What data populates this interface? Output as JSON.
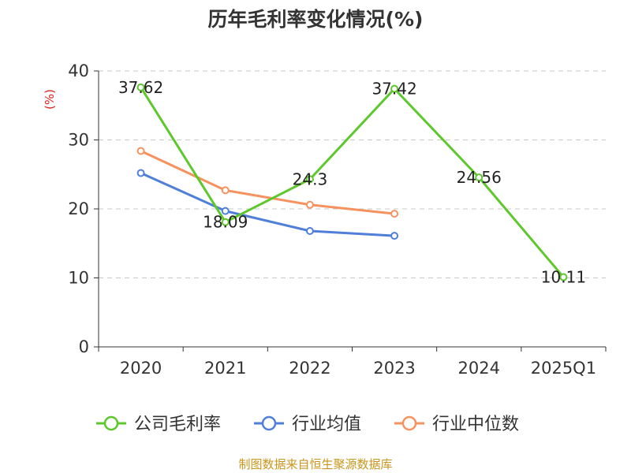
{
  "chart_data": {
    "type": "line",
    "title": "历年毛利率变化情况(%)",
    "ylabel": "(%)",
    "xlabel": "",
    "categories": [
      "2020",
      "2021",
      "2022",
      "2023",
      "2024",
      "2025Q1"
    ],
    "ylim": [
      0,
      40
    ],
    "yticks": [
      0,
      10,
      20,
      30,
      40
    ],
    "grid": true,
    "legend_position": "bottom",
    "series": [
      {
        "name": "公司毛利率",
        "color": "#5dc82c",
        "values": [
          37.62,
          18.09,
          24.3,
          37.42,
          24.56,
          10.11
        ],
        "labels": [
          "37.62",
          "18.09",
          "24.3",
          "37.42",
          "24.56",
          "10.11"
        ]
      },
      {
        "name": "行业均值",
        "color": "#4f7fd8",
        "values": [
          25.2,
          19.7,
          16.8,
          16.1,
          null,
          null
        ]
      },
      {
        "name": "行业中位数",
        "color": "#f5925f",
        "values": [
          28.4,
          22.7,
          20.6,
          19.3,
          null,
          null
        ]
      }
    ],
    "source": "制图数据来自恒生聚源数据库"
  }
}
